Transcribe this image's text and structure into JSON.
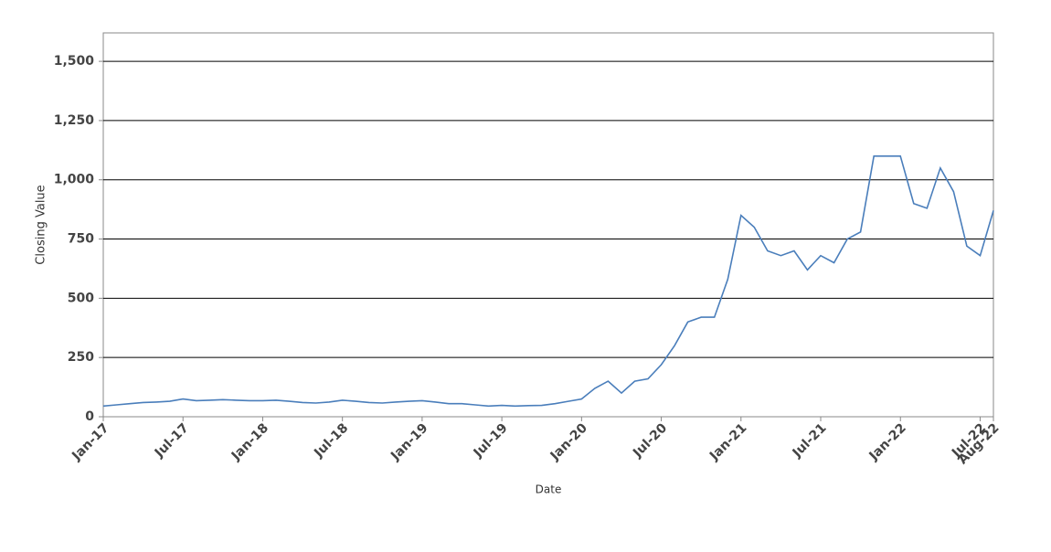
{
  "chart_data": {
    "type": "line",
    "x_label": "Date",
    "y_label": "Closing Value",
    "x": [
      "2017-01",
      "2017-02",
      "2017-03",
      "2017-04",
      "2017-05",
      "2017-06",
      "2017-07",
      "2017-08",
      "2017-09",
      "2017-10",
      "2017-11",
      "2017-12",
      "2018-01",
      "2018-02",
      "2018-03",
      "2018-04",
      "2018-05",
      "2018-06",
      "2018-07",
      "2018-08",
      "2018-09",
      "2018-10",
      "2018-11",
      "2018-12",
      "2019-01",
      "2019-02",
      "2019-03",
      "2019-04",
      "2019-05",
      "2019-06",
      "2019-07",
      "2019-08",
      "2019-09",
      "2019-10",
      "2019-11",
      "2019-12",
      "2020-01",
      "2020-02",
      "2020-03",
      "2020-04",
      "2020-05",
      "2020-06",
      "2020-07",
      "2020-08",
      "2020-09",
      "2020-10",
      "2020-11",
      "2020-12",
      "2021-01",
      "2021-02",
      "2021-03",
      "2021-04",
      "2021-05",
      "2021-06",
      "2021-07",
      "2021-08",
      "2021-09",
      "2021-10",
      "2021-11",
      "2021-12",
      "2022-01",
      "2022-02",
      "2022-03",
      "2022-04",
      "2022-05",
      "2022-06",
      "2022-07",
      "2022-08"
    ],
    "values": [
      45,
      50,
      55,
      60,
      62,
      65,
      75,
      68,
      70,
      72,
      70,
      68,
      68,
      70,
      65,
      60,
      58,
      62,
      70,
      65,
      60,
      58,
      62,
      65,
      68,
      62,
      55,
      55,
      50,
      45,
      48,
      45,
      47,
      48,
      55,
      65,
      75,
      120,
      150,
      100,
      150,
      160,
      220,
      300,
      400,
      420,
      420,
      580,
      850,
      800,
      700,
      680,
      700,
      620,
      680,
      650,
      750,
      780,
      1100,
      1100,
      1100,
      900,
      880,
      1050,
      950,
      720,
      680,
      870
    ],
    "color": "#4a7ebb",
    "xlim": [
      "2017-01",
      "2022-08"
    ],
    "xticks": [
      {
        "value": "2017-01",
        "label": "Jan-17"
      },
      {
        "value": "2017-07",
        "label": "Jul-17"
      },
      {
        "value": "2018-01",
        "label": "Jan-18"
      },
      {
        "value": "2018-07",
        "label": "Jul-18"
      },
      {
        "value": "2019-01",
        "label": "Jan-19"
      },
      {
        "value": "2019-07",
        "label": "Jul-19"
      },
      {
        "value": "2020-01",
        "label": "Jan-20"
      },
      {
        "value": "2020-07",
        "label": "Jul-20"
      },
      {
        "value": "2021-01",
        "label": "Jan-21"
      },
      {
        "value": "2021-07",
        "label": "Jul-21"
      },
      {
        "value": "2022-01",
        "label": "Jan-22"
      },
      {
        "value": "2022-07",
        "label": "Jul-22"
      },
      {
        "value": "2022-08",
        "label": "Aug-22"
      }
    ],
    "ylim": [
      0,
      1620
    ],
    "yticks": [
      0,
      250,
      500,
      750,
      {
        "value": 1000,
        "label": "1,000"
      },
      {
        "value": 1250,
        "label": "1,250"
      },
      {
        "value": 1500,
        "label": "1,500"
      }
    ],
    "grid": true
  }
}
